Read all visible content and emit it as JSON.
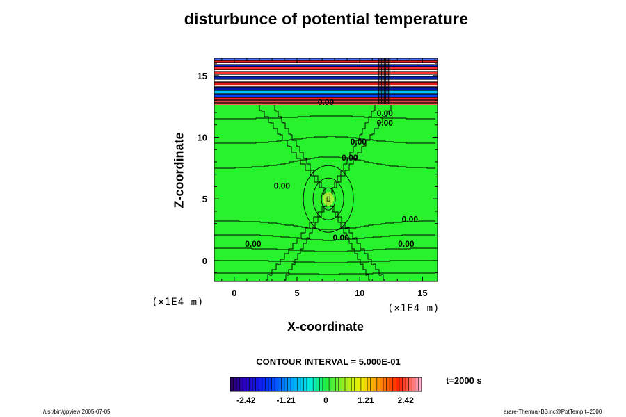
{
  "chart_data": {
    "type": "heatmap",
    "title": "disturbunce of potential temperature",
    "xlabel": "X-coordinate",
    "ylabel": "Z-coordinate",
    "x_unit": "(×1E4 m)",
    "z_unit": "(×1E4 m)",
    "xlim": [
      -1.6,
      16.2
    ],
    "ylim": [
      -1.7,
      16.4
    ],
    "x_ticks": [
      0,
      5,
      10,
      15
    ],
    "x_tick_labels": [
      "0",
      "5",
      "10",
      "15"
    ],
    "y_ticks": [
      0,
      5,
      10,
      15
    ],
    "y_tick_labels": [
      "0",
      "5",
      "10",
      "15"
    ],
    "contour_interval_label": "CONTOUR INTERVAL = 5.000E-01",
    "contour_labels": [
      {
        "text": "0.00",
        "x": 12.0,
        "z": 11.9
      },
      {
        "text": "0.00",
        "x": 12.0,
        "z": 11.1
      },
      {
        "text": "0.00",
        "x": 9.9,
        "z": 9.6
      },
      {
        "text": "0.00",
        "x": 9.2,
        "z": 8.3
      },
      {
        "text": "0.00",
        "x": 3.8,
        "z": 6.0
      },
      {
        "text": "0.00",
        "x": 14.0,
        "z": 3.3
      },
      {
        "text": "0.00",
        "x": 8.5,
        "z": 1.8
      },
      {
        "text": "0.00",
        "x": 1.5,
        "z": 1.3
      },
      {
        "text": "0.00",
        "x": 13.7,
        "z": 1.3
      },
      {
        "text": "0.00",
        "x": 7.3,
        "z": 12.8
      }
    ],
    "colorbar": {
      "min": -2.9,
      "max": 2.9,
      "ticks": [
        -2.42,
        -1.21,
        0,
        1.21,
        2.42
      ],
      "tick_labels": [
        "-2.42",
        "-1.21",
        "0",
        "1.21",
        "2.42"
      ]
    },
    "time_label": "t=2000 s"
  },
  "footer": {
    "left": "/usr/bin/gpview 2005-07-05",
    "right": "arare-Thermal-BB.nc@PotTemp,t=2000"
  }
}
